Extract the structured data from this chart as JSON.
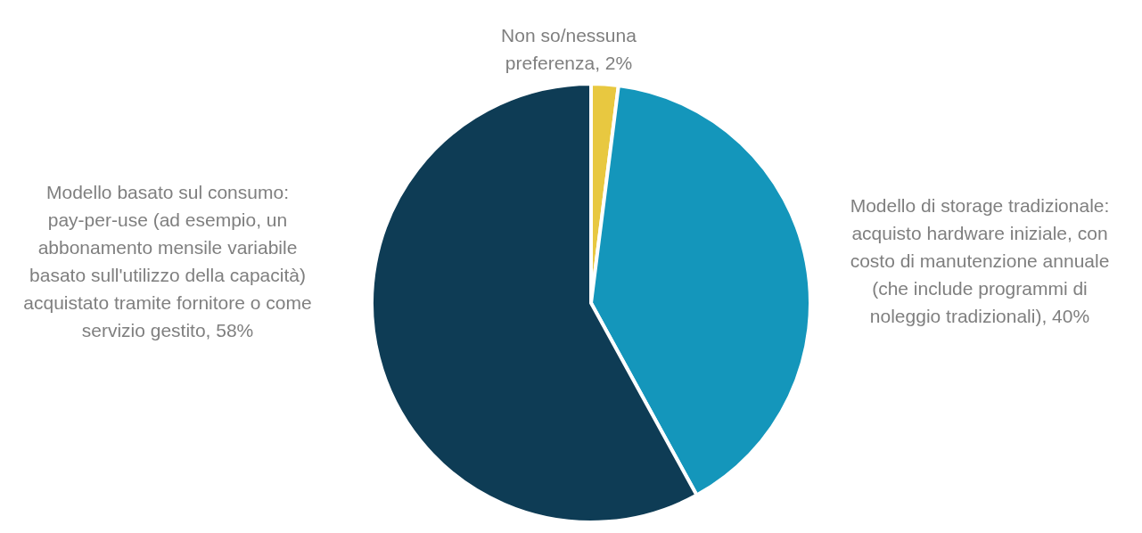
{
  "chart_data": {
    "type": "pie",
    "categories": [
      "Non so/nessuna preferenza",
      "Modello di storage tradizionale: acquisto hardware iniziale, con costo di manutenzione annuale (che include programmi di noleggio tradizionali)",
      "Modello basato sul consumo: pay-per-use (ad esempio, un abbonamento mensile variabile basato sull'utilizzo della capacità) acquistato tramite fornitore o come servizio gestito"
    ],
    "values": [
      2,
      40,
      58
    ],
    "colors": [
      "#e8c840",
      "#1496bb",
      "#0e3c55"
    ],
    "value_labels": [
      "2%",
      "40%",
      "58%"
    ]
  }
}
